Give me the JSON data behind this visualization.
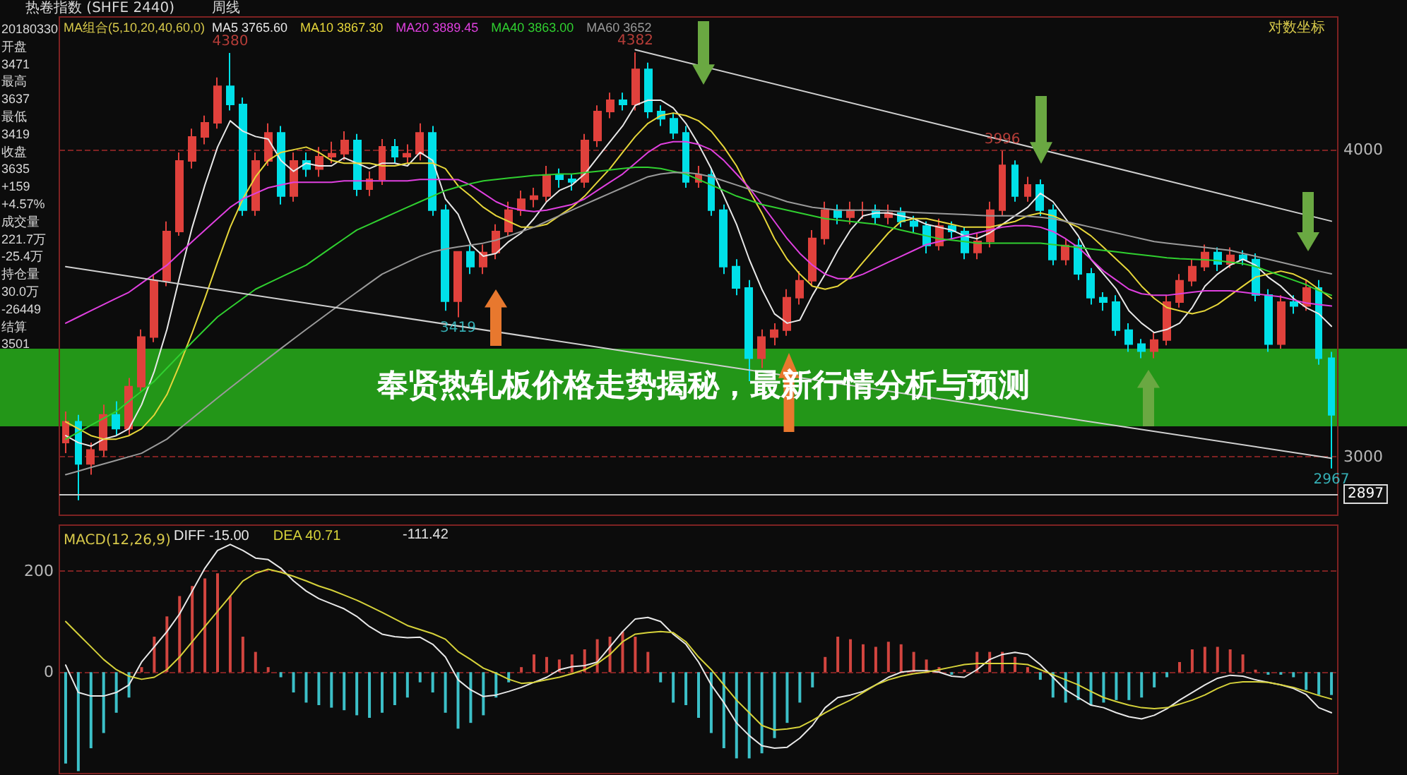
{
  "chart_data": [
    {
      "type": "candlestick",
      "title": "奉贤热轧板价格走势揭秘，最新行情分析与预测",
      "subtitle": "热卷指数 (SHFE 2440)",
      "categories": [
        null,
        null,
        null,
        null,
        null,
        null,
        null,
        null,
        null,
        null,
        null,
        null,
        null,
        null,
        null,
        null,
        null,
        null,
        null,
        null,
        null,
        null,
        null,
        null,
        null,
        null,
        null,
        null,
        null,
        null,
        null,
        null,
        null,
        null,
        null,
        null,
        null,
        null,
        null,
        null,
        null,
        null,
        null,
        null,
        null,
        null,
        null,
        null,
        null,
        null,
        null,
        null,
        null,
        null,
        null,
        null,
        null,
        null,
        null,
        null,
        null,
        null,
        null,
        null,
        null,
        null,
        null,
        null,
        null,
        null,
        null,
        null,
        null,
        null,
        null,
        null,
        null,
        null,
        null,
        null,
        null,
        null,
        null,
        null,
        null,
        null,
        null,
        null,
        null,
        null,
        null,
        null,
        null,
        null,
        null,
        null,
        null,
        null,
        null,
        null,
        null
      ],
      "ohlc": [
        [
          3040,
          3130,
          3010,
          3100
        ],
        [
          3100,
          3120,
          2880,
          2980
        ],
        [
          2980,
          3040,
          2950,
          3019
        ],
        [
          3019,
          3150,
          3000,
          3120
        ],
        [
          3120,
          3160,
          3060,
          3080
        ],
        [
          3080,
          3230,
          3060,
          3204
        ],
        [
          3204,
          3380,
          3190,
          3356
        ],
        [
          3356,
          3560,
          3340,
          3538
        ],
        [
          3538,
          3740,
          3520,
          3705
        ],
        [
          3705,
          3990,
          3690,
          3958
        ],
        [
          3958,
          4080,
          3930,
          4048
        ],
        [
          4048,
          4130,
          4020,
          4102
        ],
        [
          4102,
          4280,
          4080,
          4245
        ],
        [
          4245,
          4380,
          4150,
          4173
        ],
        [
          4173,
          4200,
          3760,
          3780
        ],
        [
          3780,
          3990,
          3760,
          3958
        ],
        [
          3958,
          4100,
          3940,
          4064
        ],
        [
          4064,
          4090,
          3800,
          3830
        ],
        [
          3830,
          3990,
          3810,
          3958
        ],
        [
          3958,
          3990,
          3900,
          3928
        ],
        [
          3928,
          4010,
          3900,
          3974
        ],
        [
          3974,
          4030,
          3950,
          3985
        ],
        [
          3985,
          4070,
          3960,
          4035
        ],
        [
          4035,
          4060,
          3830,
          3855
        ],
        [
          3855,
          3920,
          3830,
          3891
        ],
        [
          3891,
          4040,
          3870,
          4011
        ],
        [
          4011,
          4040,
          3950,
          3974
        ],
        [
          3974,
          4020,
          3950,
          3985
        ],
        [
          3985,
          4100,
          3960,
          4064
        ],
        [
          4064,
          4090,
          3760,
          3780
        ],
        [
          3780,
          3800,
          3440,
          3471
        ],
        [
          3471,
          3637,
          3419,
          3635
        ],
        [
          3635,
          3660,
          3560,
          3585
        ],
        [
          3585,
          3660,
          3560,
          3633
        ],
        [
          3633,
          3730,
          3610,
          3705
        ],
        [
          3705,
          3810,
          3690,
          3780
        ],
        [
          3780,
          3850,
          3760,
          3819
        ],
        [
          3819,
          3860,
          3790,
          3830
        ],
        [
          3830,
          3940,
          3810,
          3907
        ],
        [
          3907,
          3930,
          3860,
          3891
        ],
        [
          3891,
          3910,
          3850,
          3881
        ],
        [
          3881,
          4060,
          3860,
          4035
        ],
        [
          4035,
          4170,
          4010,
          4146
        ],
        [
          4146,
          4220,
          4120,
          4190
        ],
        [
          4190,
          4220,
          4150,
          4173
        ],
        [
          4173,
          4382,
          4150,
          4313
        ],
        [
          4313,
          4340,
          4120,
          4146
        ],
        [
          4146,
          4170,
          4090,
          4118
        ],
        [
          4118,
          4140,
          4040,
          4064
        ],
        [
          4064,
          4090,
          3860,
          3881
        ],
        [
          3881,
          3940,
          3860,
          3907
        ],
        [
          3907,
          3930,
          3760,
          3780
        ],
        [
          3780,
          3800,
          3560,
          3585
        ],
        [
          3585,
          3610,
          3490,
          3514
        ],
        [
          3514,
          3540,
          3220,
          3290
        ],
        [
          3290,
          3380,
          3260,
          3356
        ],
        [
          3356,
          3400,
          3330,
          3378
        ],
        [
          3378,
          3510,
          3360,
          3482
        ],
        [
          3482,
          3570,
          3460,
          3538
        ],
        [
          3538,
          3710,
          3520,
          3681
        ],
        [
          3681,
          3810,
          3660,
          3780
        ],
        [
          3780,
          3800,
          3730,
          3755
        ],
        [
          3755,
          3810,
          3730,
          3780
        ],
        [
          3780,
          3810,
          3750,
          3780
        ],
        [
          3780,
          3800,
          3730,
          3755
        ],
        [
          3755,
          3800,
          3730,
          3770
        ],
        [
          3770,
          3790,
          3720,
          3740
        ],
        [
          3740,
          3760,
          3700,
          3724
        ],
        [
          3724,
          3740,
          3630,
          3657
        ],
        [
          3657,
          3750,
          3640,
          3724
        ],
        [
          3724,
          3740,
          3680,
          3705
        ],
        [
          3705,
          3720,
          3610,
          3633
        ],
        [
          3633,
          3700,
          3610,
          3671
        ],
        [
          3671,
          3810,
          3650,
          3780
        ],
        [
          3780,
          3996,
          3760,
          3942
        ],
        [
          3942,
          3960,
          3810,
          3830
        ],
        [
          3830,
          3900,
          3810,
          3870
        ],
        [
          3870,
          3890,
          3760,
          3780
        ],
        [
          3780,
          3800,
          3590,
          3609
        ],
        [
          3609,
          3680,
          3590,
          3657
        ],
        [
          3657,
          3680,
          3540,
          3561
        ],
        [
          3561,
          3580,
          3460,
          3482
        ],
        [
          3482,
          3500,
          3440,
          3468
        ],
        [
          3468,
          3490,
          3360,
          3378
        ],
        [
          3378,
          3400,
          3310,
          3334
        ],
        [
          3334,
          3350,
          3290,
          3312
        ],
        [
          3312,
          3370,
          3290,
          3347
        ],
        [
          3347,
          3490,
          3330,
          3468
        ],
        [
          3468,
          3560,
          3450,
          3538
        ],
        [
          3538,
          3610,
          3520,
          3585
        ],
        [
          3585,
          3660,
          3570,
          3633
        ],
        [
          3633,
          3650,
          3570,
          3594
        ],
        [
          3594,
          3650,
          3580,
          3623
        ],
        [
          3623,
          3640,
          3590,
          3609
        ],
        [
          3609,
          3630,
          3470,
          3491
        ],
        [
          3491,
          3510,
          3310,
          3334
        ],
        [
          3334,
          3490,
          3320,
          3468
        ],
        [
          3468,
          3490,
          3430,
          3455
        ],
        [
          3455,
          3540,
          3440,
          3514
        ],
        [
          3514,
          3540,
          3270,
          3290
        ],
        [
          3290,
          3310,
          2967,
          3120
        ]
      ],
      "colors": [
        "#e0413c",
        "#00e0e8",
        "#e0413c",
        "#e0413c",
        "#00e0e8",
        "#e0413c",
        "#e0413c",
        "#e0413c",
        "#e0413c",
        "#e0413c",
        "#e0413c",
        "#e0413c",
        "#e0413c",
        "#00e0e8",
        "#00e0e8",
        "#e0413c",
        "#e0413c",
        "#00e0e8",
        "#e0413c",
        "#00e0e8",
        "#e0413c",
        "#e0413c",
        "#e0413c",
        "#00e0e8",
        "#e0413c",
        "#e0413c",
        "#00e0e8",
        "#e0413c",
        "#e0413c",
        "#00e0e8",
        "#00e0e8",
        "#e0413c",
        "#00e0e8",
        "#e0413c",
        "#e0413c",
        "#e0413c",
        "#e0413c",
        "#e0413c",
        "#e0413c",
        "#00e0e8",
        "#00e0e8",
        "#e0413c",
        "#e0413c",
        "#e0413c",
        "#00e0e8",
        "#e0413c",
        "#00e0e8",
        "#00e0e8",
        "#00e0e8",
        "#00e0e8",
        "#e0413c",
        "#00e0e8",
        "#00e0e8",
        "#00e0e8",
        "#00e0e8",
        "#e0413c",
        "#e0413c",
        "#e0413c",
        "#e0413c",
        "#e0413c",
        "#e0413c",
        "#00e0e8",
        "#e0413c",
        "#e0413c",
        "#00e0e8",
        "#e0413c",
        "#00e0e8",
        "#00e0e8",
        "#00e0e8",
        "#e0413c",
        "#00e0e8",
        "#00e0e8",
        "#e0413c",
        "#e0413c",
        "#e0413c",
        "#00e0e8",
        "#e0413c",
        "#00e0e8",
        "#00e0e8",
        "#e0413c",
        "#00e0e8",
        "#00e0e8",
        "#00e0e8",
        "#00e0e8",
        "#00e0e8",
        "#00e0e8",
        "#e0413c",
        "#e0413c",
        "#e0413c",
        "#e0413c",
        "#e0413c",
        "#00e0e8",
        "#e0413c",
        "#00e0e8",
        "#00e0e8",
        "#00e0e8",
        "#e0413c",
        "#00e0e8",
        "#e0413c",
        "#00e0e8",
        "#00e0e8"
      ],
      "series": [
        {
          "type": "line",
          "name": "MA5 3765.60",
          "color": "#e8e8e8",
          "values": [
            3060,
            3040,
            3030,
            3050,
            3060,
            3080,
            3150,
            3250,
            3380,
            3550,
            3720,
            3870,
            4010,
            4110,
            4070,
            4050,
            4040,
            3960,
            3920,
            3950,
            3940,
            3940,
            3970,
            3950,
            3930,
            3950,
            3950,
            3940,
            3990,
            3960,
            3820,
            3765.6,
            3660,
            3620,
            3630,
            3670,
            3700,
            3750,
            3810,
            3850,
            3870,
            3910,
            3970,
            4030,
            4090,
            4170,
            4190,
            4190,
            4160,
            4100,
            4020,
            3930,
            3830,
            3730,
            3610,
            3510,
            3430,
            3400,
            3410,
            3490,
            3560,
            3640,
            3710,
            3760,
            3770,
            3770,
            3760,
            3750,
            3730,
            3720,
            3710,
            3690,
            3680,
            3700,
            3730,
            3760,
            3790,
            3840,
            3810,
            3750,
            3690,
            3610,
            3560,
            3510,
            3440,
            3400,
            3370,
            3380,
            3400,
            3450,
            3520,
            3560,
            3590,
            3610,
            3590,
            3550,
            3520,
            3480,
            3450,
            3430,
            3390
          ]
        },
        {
          "type": "line",
          "name": "MA10 3867.30",
          "color": "#e6d63a",
          "values": [
            3100,
            3080,
            3060,
            3050,
            3050,
            3060,
            3080,
            3120,
            3180,
            3270,
            3370,
            3480,
            3600,
            3720,
            3820,
            3900,
            3960,
            3990,
            4000,
            4010,
            3990,
            3960,
            3950,
            3950,
            3950,
            3940,
            3940,
            3950,
            3950,
            3950,
            3930,
            3867.3,
            3830,
            3790,
            3760,
            3740,
            3720,
            3720,
            3730,
            3760,
            3790,
            3830,
            3880,
            3930,
            3990,
            4050,
            4100,
            4130,
            4140,
            4130,
            4110,
            4070,
            4010,
            3940,
            3850,
            3770,
            3680,
            3610,
            3560,
            3520,
            3510,
            3520,
            3550,
            3600,
            3650,
            3700,
            3740,
            3750,
            3750,
            3740,
            3730,
            3720,
            3720,
            3720,
            3730,
            3740,
            3760,
            3770,
            3760,
            3740,
            3720,
            3690,
            3650,
            3610,
            3570,
            3520,
            3480,
            3450,
            3440,
            3430,
            3440,
            3460,
            3490,
            3520,
            3550,
            3560,
            3570,
            3560,
            3540,
            3510,
            3480
          ]
        },
        {
          "type": "line",
          "name": "MA20 3889.45",
          "color": "#e040e0",
          "values": [
            3400,
            3420,
            3440,
            3460,
            3480,
            3500,
            3530,
            3560,
            3590,
            3630,
            3670,
            3710,
            3750,
            3790,
            3820,
            3840,
            3860,
            3870,
            3880,
            3880,
            3880,
            3880,
            3885,
            3885,
            3885,
            3885,
            3885,
            3885,
            3890,
            3890,
            3890,
            3889.45,
            3870,
            3840,
            3810,
            3790,
            3780,
            3775,
            3780,
            3790,
            3800,
            3820,
            3850,
            3880,
            3910,
            3950,
            3990,
            4020,
            4030,
            4030,
            4020,
            4000,
            3960,
            3910,
            3860,
            3800,
            3740,
            3680,
            3630,
            3590,
            3560,
            3545,
            3545,
            3560,
            3580,
            3600,
            3620,
            3640,
            3660,
            3670,
            3680,
            3690,
            3700,
            3710,
            3720,
            3725,
            3725,
            3720,
            3705,
            3680,
            3650,
            3610,
            3570,
            3540,
            3510,
            3495,
            3490,
            3490,
            3495,
            3500,
            3505,
            3505,
            3505,
            3500,
            3495,
            3490,
            3485,
            3475,
            3465,
            3460,
            3455
          ]
        },
        {
          "type": "line",
          "name": "MA40 3863.00",
          "color": "#30d030",
          "values": [
            3050,
            3070,
            3090,
            3110,
            3130,
            3160,
            3190,
            3220,
            3260,
            3300,
            3340,
            3380,
            3420,
            3450,
            3480,
            3510,
            3530,
            3550,
            3570,
            3590,
            3620,
            3650,
            3680,
            3710,
            3730,
            3750,
            3770,
            3790,
            3810,
            3830,
            3850,
            3863,
            3875,
            3885,
            3890,
            3895,
            3900,
            3905,
            3907,
            3910,
            3910,
            3915,
            3920,
            3925,
            3930,
            3935,
            3935,
            3930,
            3920,
            3910,
            3890,
            3870,
            3850,
            3830,
            3815,
            3800,
            3790,
            3780,
            3770,
            3760,
            3750,
            3745,
            3740,
            3735,
            3730,
            3720,
            3710,
            3700,
            3690,
            3680,
            3675,
            3670,
            3665,
            3665,
            3665,
            3665,
            3665,
            3665,
            3660,
            3655,
            3650,
            3645,
            3640,
            3635,
            3630,
            3625,
            3620,
            3615,
            3612,
            3610,
            3608,
            3605,
            3600,
            3595,
            3585,
            3570,
            3555,
            3540,
            3525,
            3505,
            3490
          ]
        },
        {
          "type": "line",
          "name": "MA60 3652",
          "color": "#9a9a9a",
          "values": [
            2950,
            2960,
            2970,
            2980,
            2990,
            3000,
            3010,
            3030,
            3050,
            3080,
            3110,
            3140,
            3170,
            3200,
            3230,
            3260,
            3290,
            3320,
            3350,
            3380,
            3410,
            3440,
            3470,
            3500,
            3530,
            3560,
            3580,
            3600,
            3620,
            3635,
            3645,
            3652,
            3658,
            3665,
            3675,
            3690,
            3705,
            3720,
            3740,
            3760,
            3780,
            3800,
            3820,
            3840,
            3860,
            3880,
            3900,
            3910,
            3915,
            3915,
            3910,
            3900,
            3885,
            3870,
            3855,
            3840,
            3825,
            3810,
            3800,
            3790,
            3785,
            3780,
            3780,
            3780,
            3780,
            3778,
            3775,
            3772,
            3770,
            3768,
            3766,
            3764,
            3762,
            3760,
            3760,
            3760,
            3758,
            3755,
            3750,
            3740,
            3730,
            3720,
            3710,
            3700,
            3690,
            3680,
            3670,
            3665,
            3660,
            3655,
            3650,
            3645,
            3640,
            3630,
            3620,
            3610,
            3600,
            3590,
            3580,
            3570,
            3561
          ]
        },
        {
          "type": "line",
          "color": "#d0d0d0",
          "values": [
            null,
            null,
            null,
            null,
            null,
            null,
            null,
            null,
            null,
            null,
            null,
            null,
            null,
            null,
            null,
            null,
            null,
            null,
            null,
            null,
            null,
            null,
            null,
            null,
            null,
            null,
            null,
            null,
            null,
            null,
            null,
            null,
            null,
            null,
            null,
            null,
            null,
            null,
            null,
            null,
            null,
            null,
            null,
            null,
            null,
            4393,
            null,
            null,
            null,
            null,
            null,
            null,
            null,
            null,
            null,
            null,
            null,
            null,
            null,
            null,
            null,
            null,
            null,
            null,
            null,
            null,
            null,
            null,
            null,
            null,
            null,
            null,
            null,
            null,
            null,
            null,
            null,
            null,
            null,
            null,
            null,
            null,
            null,
            null,
            null,
            null,
            null,
            null,
            null,
            null,
            null,
            null,
            null,
            null,
            null,
            null,
            null,
            null,
            null,
            null,
            3741
          ]
        },
        {
          "type": "line",
          "color": "#d0d0d0",
          "values": [
            3585,
            null,
            null,
            null,
            null,
            null,
            null,
            null,
            null,
            null,
            null,
            null,
            null,
            null,
            null,
            null,
            null,
            null,
            null,
            null,
            null,
            null,
            null,
            null,
            null,
            null,
            null,
            null,
            null,
            null,
            null,
            null,
            null,
            null,
            null,
            null,
            null,
            null,
            null,
            null,
            null,
            null,
            null,
            null,
            null,
            null,
            null,
            null,
            null,
            null,
            null,
            null,
            null,
            null,
            null,
            null,
            null,
            null,
            null,
            null,
            null,
            null,
            null,
            null,
            null,
            null,
            null,
            null,
            null,
            null,
            null,
            null,
            null,
            null,
            null,
            null,
            null,
            null,
            null,
            null,
            null,
            null,
            null,
            null,
            null,
            null,
            null,
            null,
            null,
            null,
            null,
            null,
            null,
            null,
            null,
            null,
            null,
            null,
            null,
            null,
            2996
          ]
        }
      ],
      "ylim": [
        2840,
        4530
      ],
      "yticks": [
        3000,
        4000
      ],
      "log": "y",
      "grid": "y",
      "tick_labels": "y",
      "ref_lines": [
        {
          "axis": "y",
          "value": 2897,
          "label": "2897",
          "color": "#c8c8c8",
          "line_style": "solid"
        }
      ],
      "annotations": [
        "周线",
        "MA组合(5,10,20,40,60,0)",
        "对数坐标",
        "20180330",
        "开盘",
        "3471",
        "最高",
        "3637",
        "最低",
        "3419",
        "收盘",
        "3635",
        "+159",
        "+4.57%",
        "成交量",
        "221.7万",
        "-25.4万",
        "持仓量",
        "30.0万",
        "-26449",
        "结算",
        "3501",
        {
          "text": "4380",
          "y": 4380
        },
        {
          "text": "4382",
          "y": 4382
        },
        {
          "text": "3996",
          "y": 3996
        },
        {
          "text": "3419",
          "y": 3419
        },
        {
          "text": "2967",
          "y": 2967
        }
      ]
    },
    {
      "type": "bar",
      "title": "MACD(12,26,9)",
      "categories": [
        null,
        null,
        null,
        null,
        null,
        null,
        null,
        null,
        null,
        null,
        null,
        null,
        null,
        null,
        null,
        null,
        null,
        null,
        null,
        null,
        null,
        null,
        null,
        null,
        null,
        null,
        null,
        null,
        null,
        null,
        null,
        null,
        null,
        null,
        null,
        null,
        null,
        null,
        null,
        null,
        null,
        null,
        null,
        null,
        null,
        null,
        null,
        null,
        null,
        null,
        null,
        null,
        null,
        null,
        null,
        null,
        null,
        null,
        null,
        null,
        null,
        null,
        null,
        null,
        null,
        null,
        null,
        null,
        null,
        null,
        null,
        null,
        null,
        null,
        null,
        null,
        null,
        null,
        null,
        null,
        null,
        null,
        null,
        null,
        null,
        null,
        null,
        null,
        null,
        null,
        null,
        null,
        null,
        null,
        null,
        null,
        null,
        null,
        null,
        null,
        null
      ],
      "series": [
        {
          "type": "bar",
          "color": "#d2453f",
          "values": [
            null,
            null,
            null,
            null,
            null,
            null,
            10,
            70,
            110,
            150,
            170,
            185,
            195,
            150,
            70,
            40,
            10,
            null,
            null,
            null,
            null,
            null,
            null,
            null,
            null,
            null,
            null,
            null,
            null,
            null,
            null,
            null,
            null,
            null,
            null,
            null,
            10,
            35,
            30,
            25,
            35,
            45,
            65,
            70,
            80,
            70,
            40,
            null,
            null,
            null,
            null,
            null,
            null,
            null,
            null,
            null,
            null,
            null,
            null,
            null,
            30,
            70,
            65,
            55,
            50,
            60,
            55,
            40,
            25,
            10,
            null,
            5,
            40,
            40,
            40,
            30,
            10,
            null,
            null,
            null,
            null,
            null,
            null,
            null,
            null,
            null,
            null,
            null,
            20,
            45,
            50,
            50,
            45,
            35,
            5,
            null,
            null,
            null,
            null,
            null,
            null
          ]
        },
        {
          "type": "bar",
          "color": "#3cc0c8",
          "values": [
            -180,
            -195,
            -150,
            -120,
            -80,
            -50,
            null,
            null,
            null,
            null,
            null,
            null,
            null,
            null,
            null,
            null,
            null,
            -10,
            -40,
            -60,
            -65,
            -70,
            -75,
            -85,
            -90,
            -80,
            -65,
            -50,
            -20,
            -40,
            -80,
            -111.42,
            -100,
            -85,
            -50,
            -20,
            null,
            null,
            null,
            null,
            null,
            null,
            null,
            null,
            null,
            null,
            null,
            -20,
            -60,
            -65,
            -90,
            -120,
            -150,
            -170,
            -170,
            -160,
            -130,
            -100,
            -60,
            -30,
            null,
            null,
            null,
            null,
            null,
            null,
            null,
            null,
            null,
            null,
            -5,
            null,
            null,
            null,
            null,
            null,
            null,
            -15,
            -50,
            -60,
            -55,
            -65,
            -60,
            -55,
            -55,
            -50,
            -30,
            -10,
            null,
            null,
            null,
            null,
            null,
            null,
            null,
            -5,
            -5,
            -10,
            -35,
            -45,
            -45
          ]
        },
        {
          "type": "line",
          "name": "DIFF -15.00",
          "color": "#e8e8e8",
          "values": [
            14,
            -40,
            -47,
            -47,
            -40,
            -25,
            20,
            50,
            80,
            115,
            160,
            205,
            240,
            252,
            240,
            225,
            222,
            205,
            180,
            160,
            145,
            135,
            125,
            110,
            90,
            75,
            70,
            68,
            69,
            55,
            30,
            -15,
            -35,
            -48,
            -45,
            -38,
            -30,
            -20,
            -10,
            5,
            11,
            13,
            20,
            50,
            80,
            105,
            108,
            100,
            75,
            55,
            20,
            -25,
            -60,
            -100,
            -125,
            -145,
            -150,
            -148,
            -130,
            -105,
            -70,
            -50,
            -45,
            -38,
            -25,
            -10,
            0,
            3,
            3,
            0,
            -8,
            -10,
            5,
            25,
            35,
            39,
            35,
            15,
            -10,
            -35,
            -50,
            -65,
            -70,
            -80,
            -88,
            -92,
            -85,
            -72,
            -55,
            -40,
            -25,
            -12,
            -6,
            -8,
            -15,
            -20,
            -25,
            -32,
            -44,
            -70,
            -80
          ]
        },
        {
          "type": "line",
          "name": "DEA 40.71",
          "color": "#d6d23a",
          "values": [
            100,
            75,
            50,
            25,
            5,
            -8,
            -14,
            -10,
            5,
            30,
            60,
            90,
            120,
            150,
            180,
            195,
            203,
            197,
            189,
            180,
            170,
            162,
            152,
            142,
            130,
            118,
            105,
            92,
            84,
            76,
            65,
            40.71,
            25,
            8,
            -2,
            -14,
            -22,
            -20,
            -15,
            -10,
            -3,
            5,
            17,
            35,
            60,
            75,
            78,
            80,
            78,
            60,
            30,
            5,
            -25,
            -55,
            -80,
            -105,
            -114,
            -112,
            -108,
            -95,
            -80,
            -67,
            -55,
            -40,
            -25,
            -15,
            -8,
            -3,
            0,
            5,
            10,
            15,
            17,
            17,
            17,
            17,
            15,
            5,
            -5,
            -15,
            -25,
            -38,
            -50,
            -58,
            -65,
            -70,
            -72,
            -70,
            -63,
            -55,
            -45,
            -32,
            -22,
            -19,
            -19,
            -20,
            -25,
            -30,
            -38,
            -46,
            -53
          ]
        }
      ],
      "ylim": [
        -200,
        290
      ],
      "yticks": [
        0,
        200
      ],
      "grid": "y",
      "legend": "top left",
      "tick_labels": "y",
      "annotations": [
        "-111.42"
      ]
    }
  ]
}
